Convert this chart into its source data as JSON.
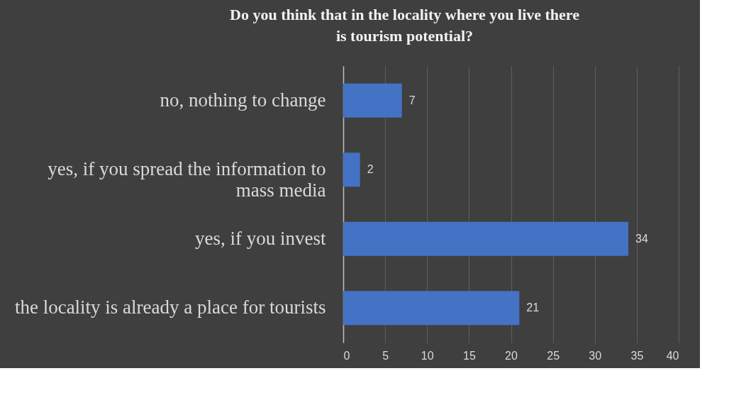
{
  "chart_data": {
    "type": "bar",
    "orientation": "horizontal",
    "title": "Do you think that in the locality where you live there is tourism potential?",
    "categories": [
      "no, nothing to change",
      "yes, if you spread the information to mass media",
      "yes, if you invest",
      "the locality is already a place for tourists"
    ],
    "values": [
      7,
      2,
      34,
      21
    ],
    "color": "#4472c4",
    "xlim": [
      0,
      40
    ],
    "xticks": [
      0,
      5,
      10,
      15,
      20,
      25,
      30,
      35,
      40
    ],
    "grid": "x",
    "data_labels": true,
    "legend": false
  }
}
